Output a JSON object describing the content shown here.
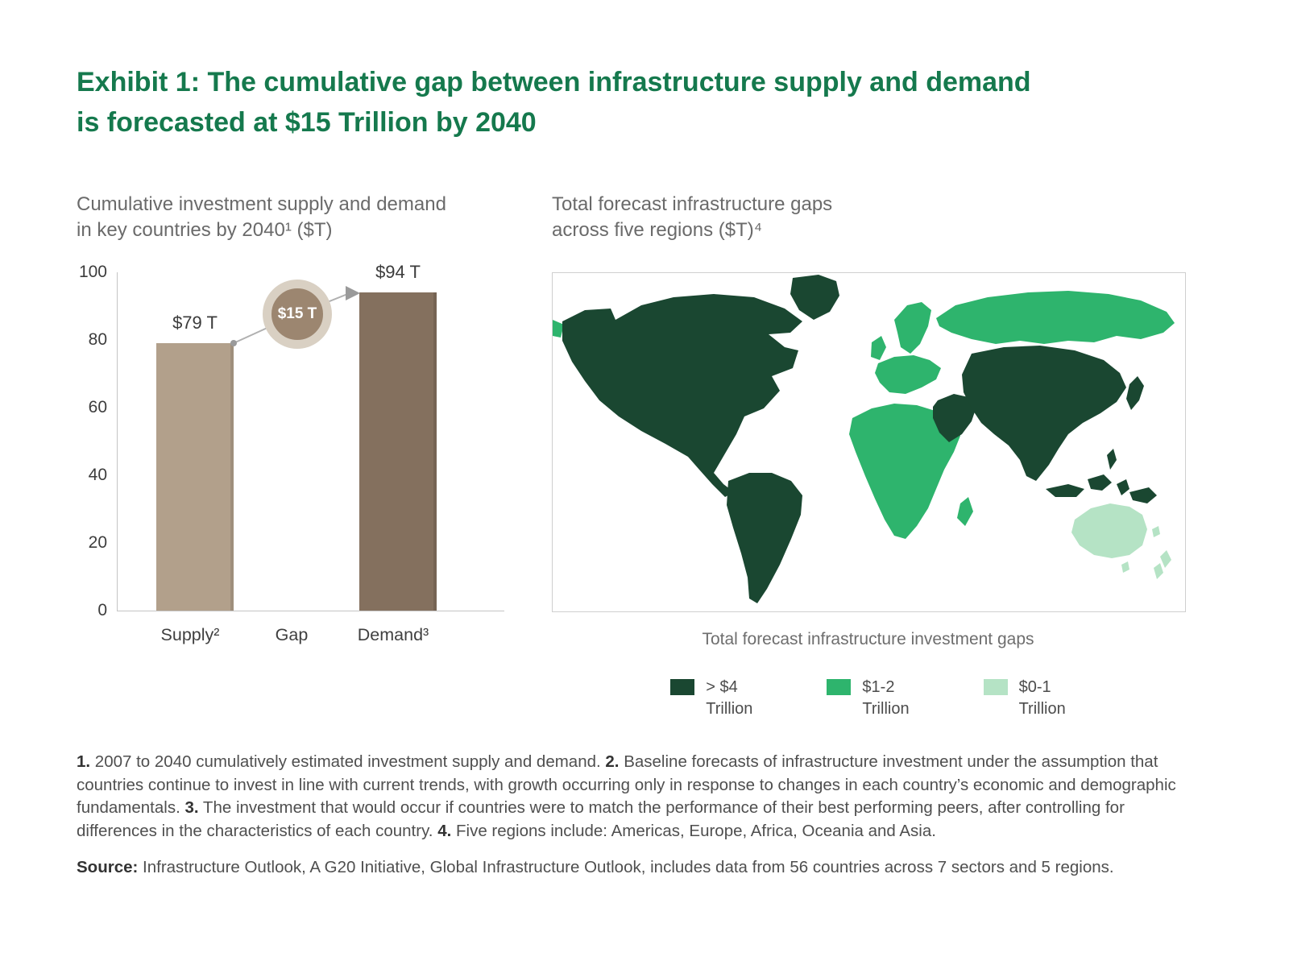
{
  "header": {
    "title": "Exhibit 1: The cumulative gap between infrastructure supply and demand\nis forecasted at $15 Trillion by 2040"
  },
  "chart_data": [
    {
      "type": "bar",
      "title": "Cumulative investment supply and demand\nin key countries by 2040¹ ($T)",
      "categories": [
        "Supply²",
        "Gap",
        "Demand³"
      ],
      "values": [
        79,
        15,
        94
      ],
      "bar_value_labels": {
        "supply": "$79 T",
        "demand": "$94 T"
      },
      "gap_callout": "$15 T",
      "ylim": [
        0,
        100
      ],
      "yticks": [
        "100",
        "80",
        "60",
        "40",
        "20",
        "0"
      ],
      "bar_colors": {
        "supply": "#b2a08b",
        "demand": "#84705e"
      },
      "units": "$ Trillion"
    },
    {
      "type": "map",
      "title": "Total forecast infrastructure gaps\nacross five regions ($T)⁴",
      "caption": "Total forecast infrastructure investment gaps",
      "colors": {
        "dark": "#1a4731",
        "medium": "#2eb46d",
        "light": "#b5e3c5"
      },
      "legend": [
        {
          "label": "> $4\nTrillion",
          "category": "dark"
        },
        {
          "label": "$1-2\nTrillion",
          "category": "medium"
        },
        {
          "label": "$0-1\nTrillion",
          "category": "light"
        }
      ],
      "regions": [
        {
          "name": "Americas",
          "gap": "> $4 Trillion"
        },
        {
          "name": "Asia",
          "gap": "> $4 Trillion"
        },
        {
          "name": "Europe",
          "gap": "$1-2 Trillion"
        },
        {
          "name": "Africa",
          "gap": "$1-2 Trillion"
        },
        {
          "name": "Oceania",
          "gap": "$0-1 Trillion"
        }
      ]
    }
  ],
  "footnotes": {
    "items": [
      {
        "marker": "1.",
        "text": " 2007 to 2040 cumulatively estimated investment supply and demand. "
      },
      {
        "marker": "2.",
        "text": " Baseline forecasts of infrastructure investment under the assumption that countries continue to invest in line with current trends, with growth occurring only in response to changes in each country’s economic and demographic fundamentals. "
      },
      {
        "marker": "3.",
        "text": " The investment that would occur if countries were to match the performance of their best performing peers, after controlling for differences in the characteristics of each country. "
      },
      {
        "marker": "4.",
        "text": " Five regions include: Americas, Europe, Africa, Oceania and Asia."
      }
    ],
    "source_label": "Source:",
    "source_text": " Infrastructure Outlook, A G20 Initiative, Global Infrastructure Outlook, includes data from 56 countries across 7 sectors and 5 regions."
  }
}
